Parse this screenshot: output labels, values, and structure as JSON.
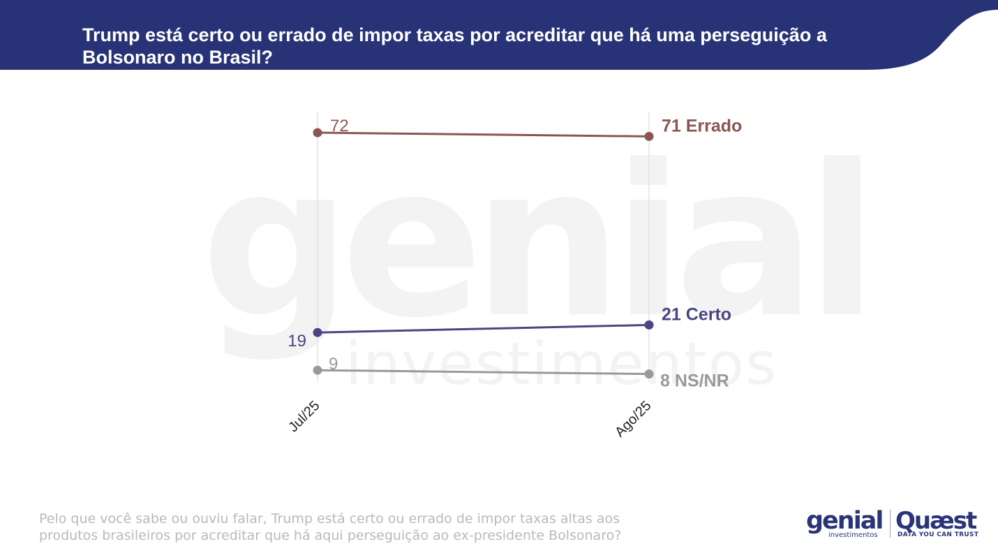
{
  "title": "Trump está certo ou errado de impor taxas por acreditar que há uma perseguição a Bolsonaro no Brasil?",
  "footnote": "Pelo que você sabe ou ouviu falar, Trump está certo ou errado de impor taxas altas aos produtos brasileiros por acreditar que há aqui perseguição ao ex-presidente Bolsonaro?",
  "colors": {
    "header": "#283377",
    "errado": "#8b5651",
    "certo": "#494681",
    "nsnr": "#999999",
    "gridline": "#e3e3e3",
    "watermark": "#f3f3f3"
  },
  "watermark": {
    "main": "genial",
    "sub": "investimentos"
  },
  "logos": {
    "genial": {
      "name": "genial",
      "sub": "investimentos"
    },
    "quaest": {
      "name": "Quæst",
      "sub": "DATA YOU CAN TRUST"
    }
  },
  "chart_data": {
    "type": "line",
    "categories": [
      "Jul/25",
      "Ago/25"
    ],
    "ylim": [
      0,
      100
    ],
    "grid": "vertical",
    "series": [
      {
        "name": "Errado",
        "values": [
          72,
          71
        ],
        "color": "#8b5651",
        "end_label": "71 Errado",
        "start_label": "72"
      },
      {
        "name": "Certo",
        "values": [
          19,
          21
        ],
        "color": "#494681",
        "end_label": "21 Certo",
        "start_label": "19"
      },
      {
        "name": "NS/NR",
        "values": [
          9,
          8
        ],
        "color": "#999999",
        "end_label": "8 NS/NR",
        "start_label": "9"
      }
    ]
  }
}
